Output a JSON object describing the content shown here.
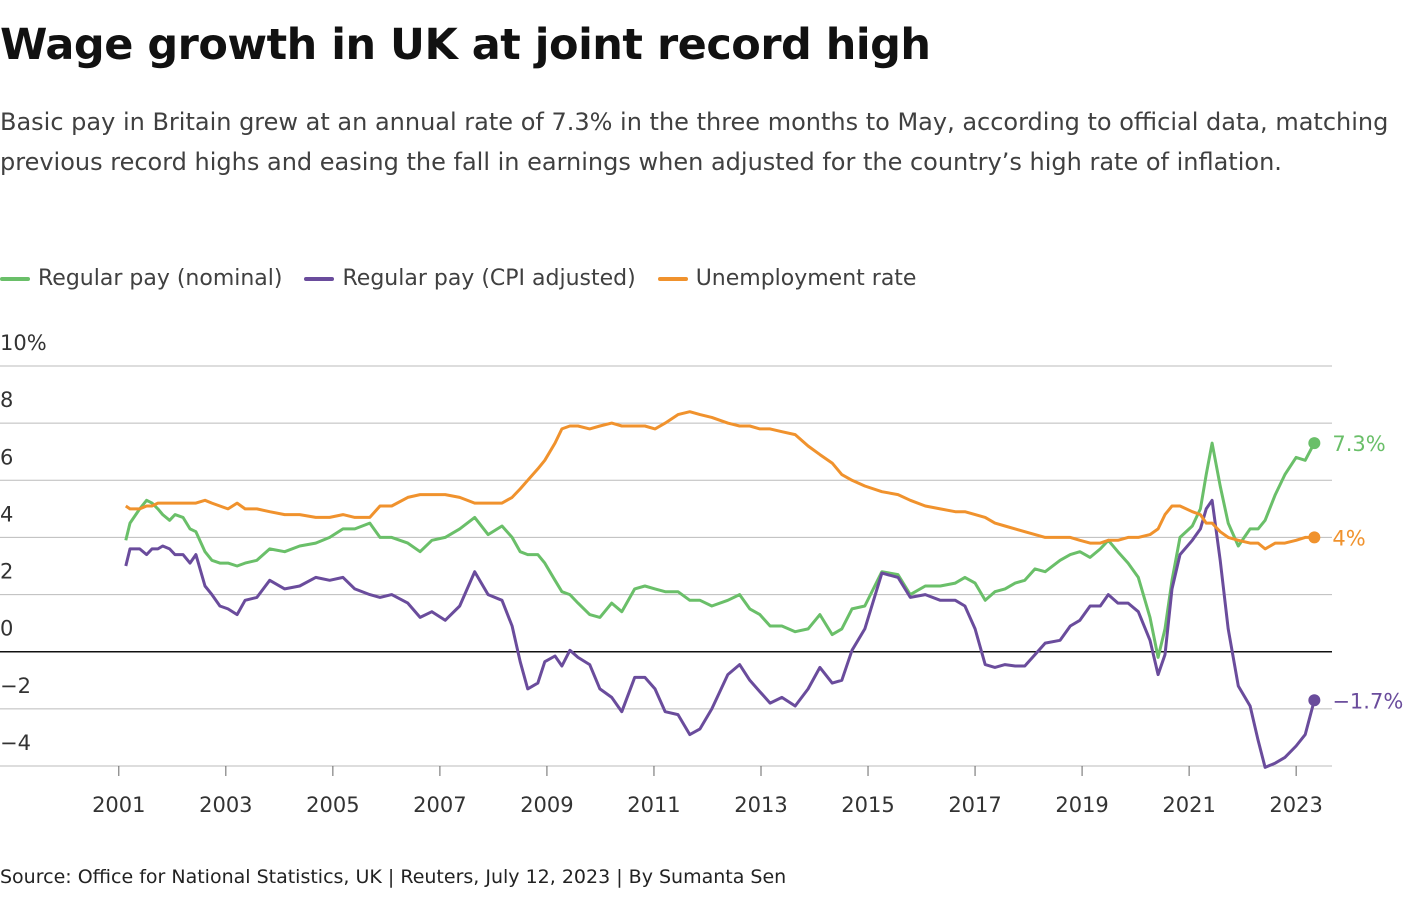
{
  "chart_data": {
    "type": "line",
    "title": "Wage growth in UK at joint record high",
    "subtitle": "Basic pay in Britain grew at an annual rate of 7.3% in the three months to May, according to official data, matching previous record highs and easing the fall in earnings when adjusted for the country’s high rate of inflation.",
    "source": "Source: Office for National Statistics, UK | Reuters, July 12, 2023 | By Sumanta Sen",
    "x": [
      2001.13,
      2001.21,
      2001.39,
      2001.52,
      2001.62,
      2001.73,
      2001.82,
      2001.95,
      2002.05,
      2002.2,
      2002.33,
      2002.44,
      2002.61,
      2002.74,
      2002.89,
      2003.04,
      2003.21,
      2003.36,
      2003.58,
      2003.82,
      2004.1,
      2004.38,
      2004.68,
      2004.94,
      2005.19,
      2005.41,
      2005.69,
      2005.88,
      2006.1,
      2006.4,
      2006.63,
      2006.85,
      2007.1,
      2007.37,
      2007.65,
      2007.9,
      2008.16,
      2008.35,
      2008.5,
      2008.64,
      2008.83,
      2008.96,
      2009.15,
      2009.28,
      2009.43,
      2009.58,
      2009.8,
      2009.99,
      2010.21,
      2010.4,
      2010.64,
      2010.83,
      2011.02,
      2011.21,
      2011.45,
      2011.67,
      2011.86,
      2012.08,
      2012.38,
      2012.6,
      2012.79,
      2012.98,
      2013.17,
      2013.39,
      2013.64,
      2013.88,
      2014.1,
      2014.33,
      2014.51,
      2014.7,
      2014.94,
      2015.26,
      2015.56,
      2015.79,
      2016.07,
      2016.35,
      2016.63,
      2016.81,
      2017.0,
      2017.19,
      2017.37,
      2017.56,
      2017.75,
      2017.93,
      2018.12,
      2018.31,
      2018.59,
      2018.78,
      2018.96,
      2019.15,
      2019.34,
      2019.49,
      2019.67,
      2019.86,
      2020.05,
      2020.27,
      2020.42,
      2020.55,
      2020.68,
      2020.83,
      2021.06,
      2021.21,
      2021.32,
      2021.43,
      2021.58,
      2021.73,
      2021.92,
      2022.14,
      2022.29,
      2022.42,
      2022.61,
      2022.79,
      2023.0,
      2023.17,
      2023.34
    ],
    "series": [
      {
        "name": "Regular pay (nominal)",
        "color": "#6abf69",
        "end_label": "7.3%",
        "values": [
          3.9,
          4.5,
          5.0,
          5.3,
          5.2,
          5.0,
          4.8,
          4.6,
          4.8,
          4.7,
          4.3,
          4.2,
          3.5,
          3.2,
          3.1,
          3.1,
          3.0,
          3.1,
          3.2,
          3.6,
          3.5,
          3.7,
          3.8,
          4.0,
          4.3,
          4.3,
          4.5,
          4.0,
          4.0,
          3.8,
          3.5,
          3.9,
          4.0,
          4.3,
          4.7,
          4.1,
          4.4,
          4.0,
          3.5,
          3.4,
          3.4,
          3.1,
          2.5,
          2.1,
          2.0,
          1.7,
          1.3,
          1.2,
          1.7,
          1.4,
          2.2,
          2.3,
          2.2,
          2.1,
          2.1,
          1.8,
          1.8,
          1.6,
          1.8,
          2.0,
          1.5,
          1.3,
          0.9,
          0.9,
          0.7,
          0.8,
          1.3,
          0.6,
          0.8,
          1.5,
          1.6,
          2.8,
          2.7,
          2.0,
          2.3,
          2.3,
          2.4,
          2.6,
          2.4,
          1.8,
          2.1,
          2.2,
          2.4,
          2.5,
          2.9,
          2.8,
          3.2,
          3.4,
          3.5,
          3.3,
          3.6,
          3.9,
          3.5,
          3.1,
          2.6,
          1.2,
          -0.2,
          0.8,
          2.5,
          4.0,
          4.4,
          5.0,
          6.2,
          7.3,
          5.8,
          4.5,
          3.7,
          4.3,
          4.3,
          4.6,
          5.5,
          6.2,
          6.8,
          6.7,
          7.3
        ]
      },
      {
        "name": "Regular pay (CPI adjusted)",
        "color": "#6a4c9c",
        "end_label": "−1.7%",
        "values": [
          3.0,
          3.6,
          3.6,
          3.4,
          3.6,
          3.6,
          3.7,
          3.6,
          3.4,
          3.4,
          3.1,
          3.4,
          2.3,
          2.0,
          1.6,
          1.5,
          1.3,
          1.8,
          1.9,
          2.5,
          2.2,
          2.3,
          2.6,
          2.5,
          2.6,
          2.2,
          2.0,
          1.9,
          2.0,
          1.7,
          1.2,
          1.4,
          1.1,
          1.6,
          2.8,
          2.0,
          1.8,
          0.9,
          -0.35,
          -1.3,
          -1.1,
          -0.35,
          -0.15,
          -0.5,
          0.05,
          -0.2,
          -0.45,
          -1.3,
          -1.6,
          -2.1,
          -0.9,
          -0.9,
          -1.3,
          -2.1,
          -2.2,
          -2.9,
          -2.7,
          -2.0,
          -0.8,
          -0.45,
          -1.0,
          -1.4,
          -1.8,
          -1.6,
          -1.9,
          -1.3,
          -0.55,
          -1.1,
          -1.0,
          0.05,
          0.8,
          2.75,
          2.6,
          1.9,
          2.0,
          1.8,
          1.8,
          1.6,
          0.8,
          -0.45,
          -0.55,
          -0.45,
          -0.5,
          -0.5,
          -0.1,
          0.3,
          0.4,
          0.9,
          1.1,
          1.6,
          1.6,
          2.0,
          1.7,
          1.7,
          1.4,
          0.4,
          -0.8,
          -0.1,
          2.2,
          3.4,
          3.9,
          4.3,
          5.0,
          5.3,
          3.2,
          0.8,
          -1.2,
          -1.9,
          -3.1,
          -4.05,
          -3.9,
          -3.7,
          -3.3,
          -2.9,
          -1.7
        ]
      },
      {
        "name": "Unemployment rate",
        "color": "#f0922d",
        "end_label": "4%",
        "values": [
          5.1,
          5.0,
          5.0,
          5.1,
          5.1,
          5.2,
          5.2,
          5.2,
          5.2,
          5.2,
          5.2,
          5.2,
          5.3,
          5.2,
          5.1,
          5.0,
          5.2,
          5.0,
          5.0,
          4.9,
          4.8,
          4.8,
          4.7,
          4.7,
          4.8,
          4.7,
          4.7,
          5.1,
          5.1,
          5.4,
          5.5,
          5.5,
          5.5,
          5.4,
          5.2,
          5.2,
          5.2,
          5.4,
          5.7,
          6.0,
          6.4,
          6.7,
          7.3,
          7.8,
          7.9,
          7.9,
          7.8,
          7.9,
          8.0,
          7.9,
          7.9,
          7.9,
          7.8,
          8.0,
          8.3,
          8.4,
          8.3,
          8.2,
          8.0,
          7.9,
          7.9,
          7.8,
          7.8,
          7.7,
          7.6,
          7.2,
          6.9,
          6.6,
          6.2,
          6.0,
          5.8,
          5.6,
          5.5,
          5.3,
          5.1,
          5.0,
          4.9,
          4.9,
          4.8,
          4.7,
          4.5,
          4.4,
          4.3,
          4.2,
          4.1,
          4.0,
          4.0,
          4.0,
          3.9,
          3.8,
          3.8,
          3.9,
          3.9,
          4.0,
          4.0,
          4.1,
          4.3,
          4.8,
          5.1,
          5.1,
          4.9,
          4.8,
          4.5,
          4.5,
          4.2,
          4.0,
          3.9,
          3.8,
          3.8,
          3.6,
          3.8,
          3.8,
          3.9,
          4.0,
          4.0
        ]
      }
    ],
    "xlim": [
      1998.78,
      2023.67
    ],
    "xticks": [
      2001,
      2003,
      2005,
      2007,
      2009,
      2011,
      2013,
      2015,
      2017,
      2019,
      2021,
      2023
    ],
    "ylim": [
      -4,
      10
    ],
    "yticks": [
      {
        "value": -4,
        "label": "−4"
      },
      {
        "value": -2,
        "label": "−2"
      },
      0,
      2,
      4,
      6,
      8,
      {
        "value": 10,
        "label": "10%"
      }
    ],
    "grid": true
  }
}
